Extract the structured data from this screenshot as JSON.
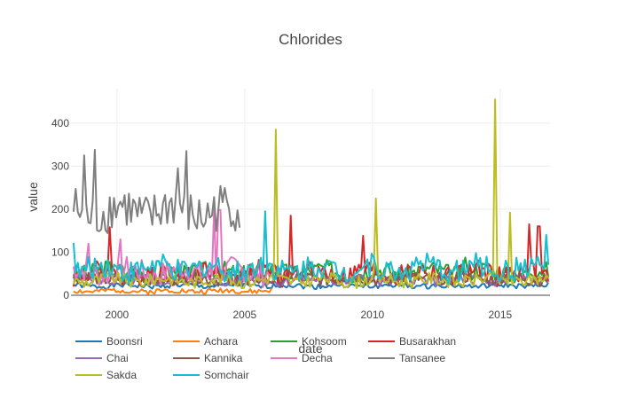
{
  "chart_data": {
    "type": "line",
    "title": "Chlorides",
    "xlabel": "date",
    "ylabel": "value",
    "xlim": [
      1998.2,
      2016.95
    ],
    "ylim": [
      0,
      480
    ],
    "x_ticks": [
      2000,
      2005,
      2010,
      2015
    ],
    "x_tick_labels": [
      "2000",
      "2005",
      "2010",
      "2015"
    ],
    "y_ticks": [
      0,
      100,
      200,
      300,
      400
    ],
    "y_tick_labels": [
      "0",
      "100",
      "200",
      "300",
      "400"
    ],
    "grid": true,
    "legend_position": "bottom",
    "series": [
      {
        "name": "Boonsri",
        "color": "#1f77b4",
        "start": 1998.3,
        "end": 2016.9,
        "base": 22,
        "amp": 6,
        "seed": 1,
        "spikes": []
      },
      {
        "name": "Achara",
        "color": "#ff7f0e",
        "start": 1998.3,
        "end": 2006.1,
        "base": 10,
        "amp": 6,
        "seed": 2,
        "spikes": []
      },
      {
        "name": "Kohsoom",
        "color": "#2ca02c",
        "start": 1998.3,
        "end": 2016.9,
        "base": 55,
        "amp": 22,
        "seed": 3,
        "spikes": [
          [
            2013.6,
            88
          ]
        ]
      },
      {
        "name": "Busarakhan",
        "color": "#d62728",
        "start": 1998.3,
        "end": 2016.9,
        "base": 50,
        "amp": 25,
        "seed": 4,
        "spikes": [
          [
            1999.7,
            158
          ],
          [
            2006.8,
            185
          ],
          [
            2009.6,
            138
          ],
          [
            2016.1,
            165
          ],
          [
            2016.5,
            160
          ]
        ]
      },
      {
        "name": "Chai",
        "color": "#9467bd",
        "start": 1998.3,
        "end": 2016.9,
        "base": 35,
        "amp": 12,
        "seed": 5,
        "spikes": []
      },
      {
        "name": "Kannika",
        "color": "#8c564b",
        "start": 1998.3,
        "end": 2016.9,
        "base": 40,
        "amp": 15,
        "seed": 6,
        "spikes": []
      },
      {
        "name": "Decha",
        "color": "#e377c2",
        "start": 1998.3,
        "end": 2006.0,
        "base": 55,
        "amp": 28,
        "seed": 7,
        "spikes": [
          [
            1998.9,
            120
          ],
          [
            2000.1,
            130
          ],
          [
            2003.8,
            200
          ],
          [
            2004.0,
            198
          ]
        ]
      },
      {
        "name": "Tansanee",
        "color": "#7f7f7f",
        "start": 1998.3,
        "end": 2004.8,
        "base": 195,
        "amp": 55,
        "seed": 8,
        "spikes": [
          [
            1998.7,
            325
          ],
          [
            1999.1,
            338
          ],
          [
            2002.7,
            335
          ],
          [
            2002.4,
            295
          ]
        ]
      },
      {
        "name": "Sakda",
        "color": "#bcbd22",
        "start": 1998.3,
        "end": 2016.9,
        "base": 35,
        "amp": 15,
        "seed": 9,
        "spikes": [
          [
            2006.2,
            385
          ],
          [
            2010.1,
            225
          ],
          [
            2014.8,
            455
          ],
          [
            2015.4,
            192
          ]
        ]
      },
      {
        "name": "Somchair",
        "color": "#17becf",
        "start": 1998.3,
        "end": 2016.9,
        "base": 62,
        "amp": 28,
        "seed": 10,
        "spikes": [
          [
            2005.8,
            195
          ],
          [
            2016.8,
            140
          ],
          [
            1998.3,
            122
          ]
        ]
      }
    ]
  }
}
